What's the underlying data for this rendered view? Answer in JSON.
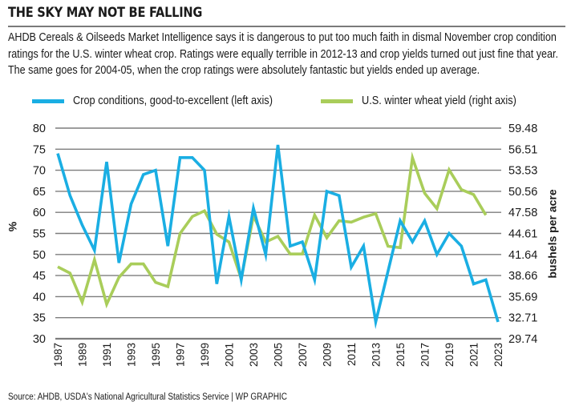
{
  "header": {
    "title": "THE SKY MAY NOT BE FALLING",
    "deck": "AHDB Cereals & Oilseeds Market Intelligence says it is dangerous to put too much faith in dismal November crop condition ratings for the U.S. winter wheat crop. Ratings were equally terrible in 2012-13 and crop yields turned out just fine that year. The same goes for 2004-05, when the crop ratings were absolutely fantastic but yields ended up average."
  },
  "footer": {
    "source": "Source: AHDB, USDA's National Agricultural Statistics Service  |  WP GRAPHIC"
  },
  "colors": {
    "crop_conditions": "#1aaee3",
    "wheat_yield": "#a9cd5a",
    "gridline": "#7d7d7d",
    "text": "#1a1a1a"
  },
  "chart_data": {
    "type": "line",
    "title": "THE SKY MAY NOT BE FALLING",
    "xlabel": "",
    "ylabel": "%",
    "ylabel_right": "bushels per acre",
    "grid": true,
    "legend_position": "top",
    "x": [
      1987,
      1988,
      1989,
      1990,
      1991,
      1992,
      1993,
      1994,
      1995,
      1996,
      1997,
      1998,
      1999,
      2000,
      2001,
      2002,
      2003,
      2004,
      2005,
      2006,
      2007,
      2008,
      2009,
      2010,
      2011,
      2012,
      2013,
      2014,
      2015,
      2016,
      2017,
      2018,
      2019,
      2020,
      2021,
      2022,
      2023
    ],
    "x_tick_labels": [
      "1987",
      "1989",
      "1991",
      "1993",
      "1995",
      "1997",
      "1999",
      "2001",
      "2003",
      "2005",
      "2007",
      "2009",
      "2011",
      "2013",
      "2015",
      "2017",
      "2019",
      "2021",
      "2023"
    ],
    "ylim": [
      30,
      80
    ],
    "y_ticks": [
      "30",
      "35",
      "40",
      "45",
      "50",
      "55",
      "60",
      "65",
      "70",
      "75",
      "80"
    ],
    "ylim_right": [
      29.74,
      59.48
    ],
    "y_ticks_right": [
      "29.74",
      "32.71",
      "35.69",
      "38.66",
      "41.64",
      "44.61",
      "47.58",
      "50.56",
      "53.53",
      "56.51",
      "59.48"
    ],
    "series": [
      {
        "name": "Crop conditions, good-to-excellent (left axis)",
        "axis": "left",
        "values": [
          74,
          64,
          57,
          51,
          72,
          48,
          62,
          69,
          70,
          52,
          73,
          73,
          70,
          43,
          59,
          44,
          61,
          50,
          76,
          52,
          53,
          44,
          65,
          64,
          47,
          52,
          34,
          46,
          58,
          53,
          58,
          50,
          55,
          52,
          43,
          44,
          34
        ]
      },
      {
        "name": "U.S. winter wheat yield (right axis)",
        "axis": "right",
        "values": [
          39.9,
          39.0,
          34.9,
          40.9,
          34.6,
          38.4,
          40.3,
          40.3,
          37.7,
          37.1,
          44.6,
          47.0,
          47.8,
          44.5,
          43.4,
          38.2,
          47.1,
          43.4,
          44.2,
          41.7,
          41.7,
          47.2,
          44.0,
          46.4,
          46.2,
          46.9,
          47.4,
          42.8,
          42.6,
          55.3,
          50.3,
          48.1,
          53.6,
          50.8,
          50.1,
          47.2,
          null
        ]
      }
    ]
  }
}
